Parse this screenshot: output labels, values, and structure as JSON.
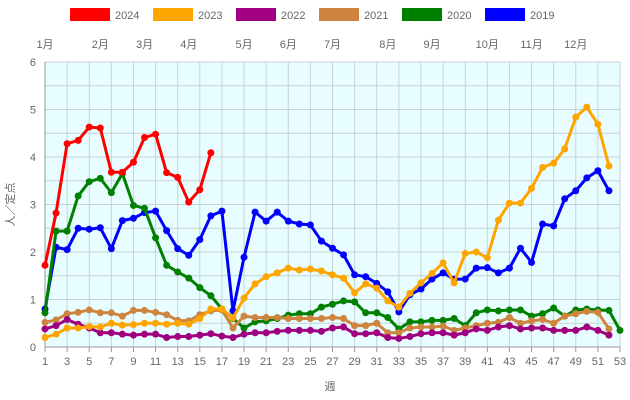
{
  "chart_data": {
    "type": "line",
    "title": "",
    "xlabel": "週",
    "ylabel": "人／定点",
    "xlim": [
      1,
      53
    ],
    "ylim": [
      0,
      6
    ],
    "x_ticks": [
      1,
      3,
      5,
      7,
      9,
      11,
      13,
      15,
      17,
      19,
      21,
      23,
      25,
      27,
      29,
      31,
      33,
      35,
      37,
      39,
      41,
      43,
      45,
      47,
      49,
      51,
      53
    ],
    "y_ticks": [
      0,
      1,
      2,
      3,
      4,
      5,
      6
    ],
    "grid": true,
    "legend_position": "top",
    "month_labels": [
      {
        "label": "1月",
        "week": 1
      },
      {
        "label": "2月",
        "week": 6
      },
      {
        "label": "3月",
        "week": 10
      },
      {
        "label": "4月",
        "week": 14
      },
      {
        "label": "5月",
        "week": 19
      },
      {
        "label": "6月",
        "week": 23
      },
      {
        "label": "7月",
        "week": 27
      },
      {
        "label": "8月",
        "week": 32
      },
      {
        "label": "9月",
        "week": 36
      },
      {
        "label": "10月",
        "week": 41
      },
      {
        "label": "11月",
        "week": 45
      },
      {
        "label": "12月",
        "week": 49
      }
    ],
    "series": [
      {
        "name": "2024",
        "color": "#ff0000",
        "values": [
          1.72,
          2.82,
          4.28,
          4.35,
          4.63,
          4.61,
          3.68,
          3.68,
          3.89,
          4.41,
          4.48,
          3.67,
          3.57,
          3.05,
          3.31,
          4.09
        ]
      },
      {
        "name": "2023",
        "color": "#ffa500",
        "values": [
          0.2,
          0.27,
          0.4,
          0.4,
          0.43,
          0.42,
          0.5,
          0.46,
          0.47,
          0.5,
          0.5,
          0.48,
          0.5,
          0.48,
          0.6,
          0.8,
          0.8,
          0.61,
          1.03,
          1.33,
          1.48,
          1.56,
          1.66,
          1.62,
          1.64,
          1.6,
          1.52,
          1.45,
          1.14,
          1.33,
          1.24,
          0.97,
          0.84,
          1.13,
          1.35,
          1.55,
          1.77,
          1.35,
          1.97,
          2.0,
          1.88,
          2.67,
          3.03,
          3.03,
          3.34,
          3.78,
          3.87,
          4.17,
          4.84,
          5.05,
          4.69,
          3.81
        ]
      },
      {
        "name": "2022",
        "color": "#a0007f",
        "values": [
          0.38,
          0.45,
          0.58,
          0.48,
          0.4,
          0.3,
          0.3,
          0.27,
          0.25,
          0.27,
          0.27,
          0.2,
          0.22,
          0.22,
          0.25,
          0.28,
          0.23,
          0.2,
          0.27,
          0.3,
          0.3,
          0.33,
          0.35,
          0.35,
          0.35,
          0.33,
          0.4,
          0.42,
          0.28,
          0.28,
          0.3,
          0.2,
          0.18,
          0.22,
          0.28,
          0.3,
          0.3,
          0.25,
          0.3,
          0.38,
          0.35,
          0.42,
          0.45,
          0.38,
          0.4,
          0.4,
          0.35,
          0.35,
          0.35,
          0.42,
          0.35,
          0.25
        ]
      },
      {
        "name": "2021",
        "color": "#cd853f",
        "values": [
          0.52,
          0.57,
          0.7,
          0.73,
          0.78,
          0.72,
          0.72,
          0.65,
          0.77,
          0.77,
          0.73,
          0.68,
          0.56,
          0.55,
          0.68,
          0.76,
          0.78,
          0.4,
          0.65,
          0.62,
          0.62,
          0.62,
          0.6,
          0.6,
          0.6,
          0.6,
          0.62,
          0.6,
          0.45,
          0.45,
          0.5,
          0.3,
          0.3,
          0.4,
          0.42,
          0.42,
          0.44,
          0.35,
          0.4,
          0.45,
          0.5,
          0.52,
          0.62,
          0.5,
          0.55,
          0.58,
          0.5,
          0.65,
          0.7,
          0.75,
          0.73,
          0.38
        ]
      },
      {
        "name": "2020",
        "color": "#008000",
        "values": [
          0.72,
          2.44,
          2.44,
          3.18,
          3.48,
          3.55,
          3.25,
          3.65,
          2.98,
          2.92,
          2.3,
          1.72,
          1.58,
          1.45,
          1.25,
          1.08,
          0.8,
          0.6,
          0.4,
          0.53,
          0.55,
          0.6,
          0.67,
          0.7,
          0.7,
          0.84,
          0.9,
          0.97,
          0.95,
          0.72,
          0.72,
          0.62,
          0.38,
          0.53,
          0.53,
          0.56,
          0.56,
          0.6,
          0.45,
          0.72,
          0.78,
          0.76,
          0.78,
          0.78,
          0.65,
          0.7,
          0.82,
          0.65,
          0.78,
          0.8,
          0.78,
          0.77,
          0.35
        ]
      },
      {
        "name": "2019",
        "color": "#0000ff",
        "values": [
          0.8,
          2.1,
          2.05,
          2.5,
          2.48,
          2.51,
          2.07,
          2.66,
          2.71,
          2.83,
          2.86,
          2.45,
          2.07,
          1.93,
          2.26,
          2.76,
          2.86,
          0.76,
          1.89,
          2.84,
          2.65,
          2.84,
          2.65,
          2.59,
          2.57,
          2.23,
          2.08,
          1.94,
          1.52,
          1.48,
          1.34,
          1.16,
          0.74,
          1.1,
          1.22,
          1.43,
          1.56,
          1.43,
          1.43,
          1.66,
          1.67,
          1.56,
          1.66,
          2.08,
          1.78,
          2.59,
          2.55,
          3.12,
          3.29,
          3.56,
          3.71,
          3.29
        ]
      }
    ]
  }
}
